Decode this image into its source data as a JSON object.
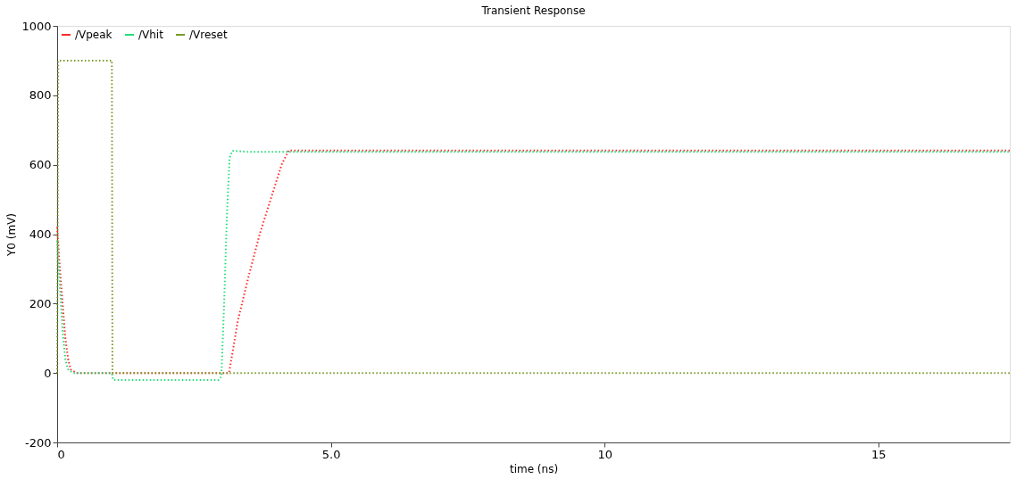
{
  "chart_data": {
    "type": "line",
    "title": "Transient Response",
    "xlabel": "time (ns)",
    "ylabel": "Y0 (mV)",
    "xlim": [
      0,
      17.4
    ],
    "ylim": [
      -200,
      1000
    ],
    "xticks": [
      0,
      {
        "value": 5,
        "label": "5.0"
      },
      10,
      15
    ],
    "yticks": [
      -200,
      0,
      200,
      400,
      600,
      800,
      1000
    ],
    "grid": false,
    "legend": "top left",
    "marker": "none",
    "line_style": "dotted",
    "series": [
      {
        "name": "/Vpeak",
        "color": "#ff2a2a",
        "x": [
          0,
          0.05,
          0.1,
          0.15,
          0.2,
          0.25,
          0.35,
          1.0,
          3.14,
          3.3,
          3.5,
          3.7,
          3.9,
          4.1,
          4.23,
          17.4
        ],
        "values": [
          420,
          300,
          200,
          100,
          40,
          10,
          0,
          0,
          0,
          150,
          280,
          400,
          500,
          600,
          641,
          641
        ]
      },
      {
        "name": "/Vhit",
        "color": "#22dd77",
        "x": [
          0,
          0.05,
          0.1,
          0.15,
          0.2,
          0.3,
          1.0,
          1.02,
          2.95,
          3.0,
          3.05,
          3.1,
          3.15,
          3.2,
          3.5,
          17.4
        ],
        "values": [
          380,
          250,
          120,
          40,
          10,
          0,
          0,
          -20,
          -20,
          -10,
          200,
          450,
          620,
          640,
          637,
          637
        ]
      },
      {
        "name": "/Vreset",
        "color": "#7a9a2a",
        "x": [
          0,
          0.02,
          1.0,
          1.01,
          17.4
        ],
        "values": [
          0,
          900,
          900,
          0,
          0
        ]
      }
    ]
  }
}
